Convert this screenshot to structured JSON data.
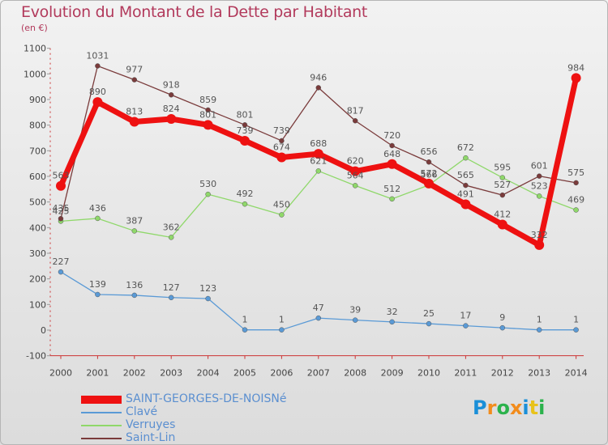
{
  "title": "Evolution du Montant de la Dette par Habitant",
  "unit": "(en €)",
  "logo": [
    "P",
    "r",
    "o",
    "x",
    "i",
    "t",
    "i"
  ],
  "logo_colors": [
    "#1a8fd8",
    "#f28c1c",
    "#2bb24c",
    "#f28c1c",
    "#1a8fd8",
    "#e8c21a",
    "#2bb24c"
  ],
  "chart_data": {
    "type": "line",
    "x": [
      "2000",
      "2001",
      "2002",
      "2003",
      "2004",
      "2005",
      "2006",
      "2007",
      "2008",
      "2009",
      "2010",
      "2011",
      "2012",
      "2013",
      "2014"
    ],
    "y_ticks": [
      "1100",
      "1000",
      "900",
      "800",
      "700",
      "600",
      "500",
      "400",
      "300",
      "200",
      "100",
      "0",
      "-100"
    ],
    "ylim": [
      -100,
      1100
    ],
    "grid": false,
    "legend_position": "bottom-left",
    "series": [
      {
        "name": "SAINT-GEORGES-DE-NOISNé",
        "color": "#ee1111",
        "values": [
          563,
          890,
          813,
          824,
          801,
          739,
          674,
          688,
          620,
          648,
          572,
          491,
          412,
          332,
          984
        ],
        "labels": [
          "563",
          "890",
          "813",
          "824",
          "801",
          "739",
          "674",
          "688",
          "620",
          "648",
          "572",
          "491",
          "412",
          "332",
          "984"
        ]
      },
      {
        "name": "Clavé",
        "color": "#5a9ad6",
        "values": [
          227,
          139,
          136,
          127,
          123,
          1,
          1,
          47,
          39,
          32,
          25,
          17,
          9,
          1,
          1
        ],
        "labels": [
          "227",
          "139",
          "136",
          "127",
          "123",
          "1",
          "1",
          "47",
          "39",
          "32",
          "25",
          "17",
          "9",
          "1",
          "1"
        ]
      },
      {
        "name": "Verruyes",
        "color": "#8fd86a",
        "values": [
          425,
          436,
          387,
          362,
          530,
          492,
          450,
          621,
          564,
          512,
          566,
          672,
          595,
          523,
          469
        ],
        "labels": [
          "425",
          "436",
          "387",
          "362",
          "530",
          "492",
          "450",
          "621",
          "564",
          "512",
          "566",
          "672",
          "595",
          "523",
          "469"
        ]
      },
      {
        "name": "Saint-Lin",
        "color": "#7a3b3b",
        "values": [
          435,
          1031,
          977,
          918,
          859,
          801,
          739,
          946,
          817,
          720,
          656,
          565,
          527,
          601,
          575
        ],
        "labels": [
          "435",
          "1031",
          "977",
          "918",
          "859",
          "801",
          "739",
          "946",
          "817",
          "720",
          "656",
          "565",
          "527",
          "601",
          "575"
        ]
      }
    ]
  }
}
